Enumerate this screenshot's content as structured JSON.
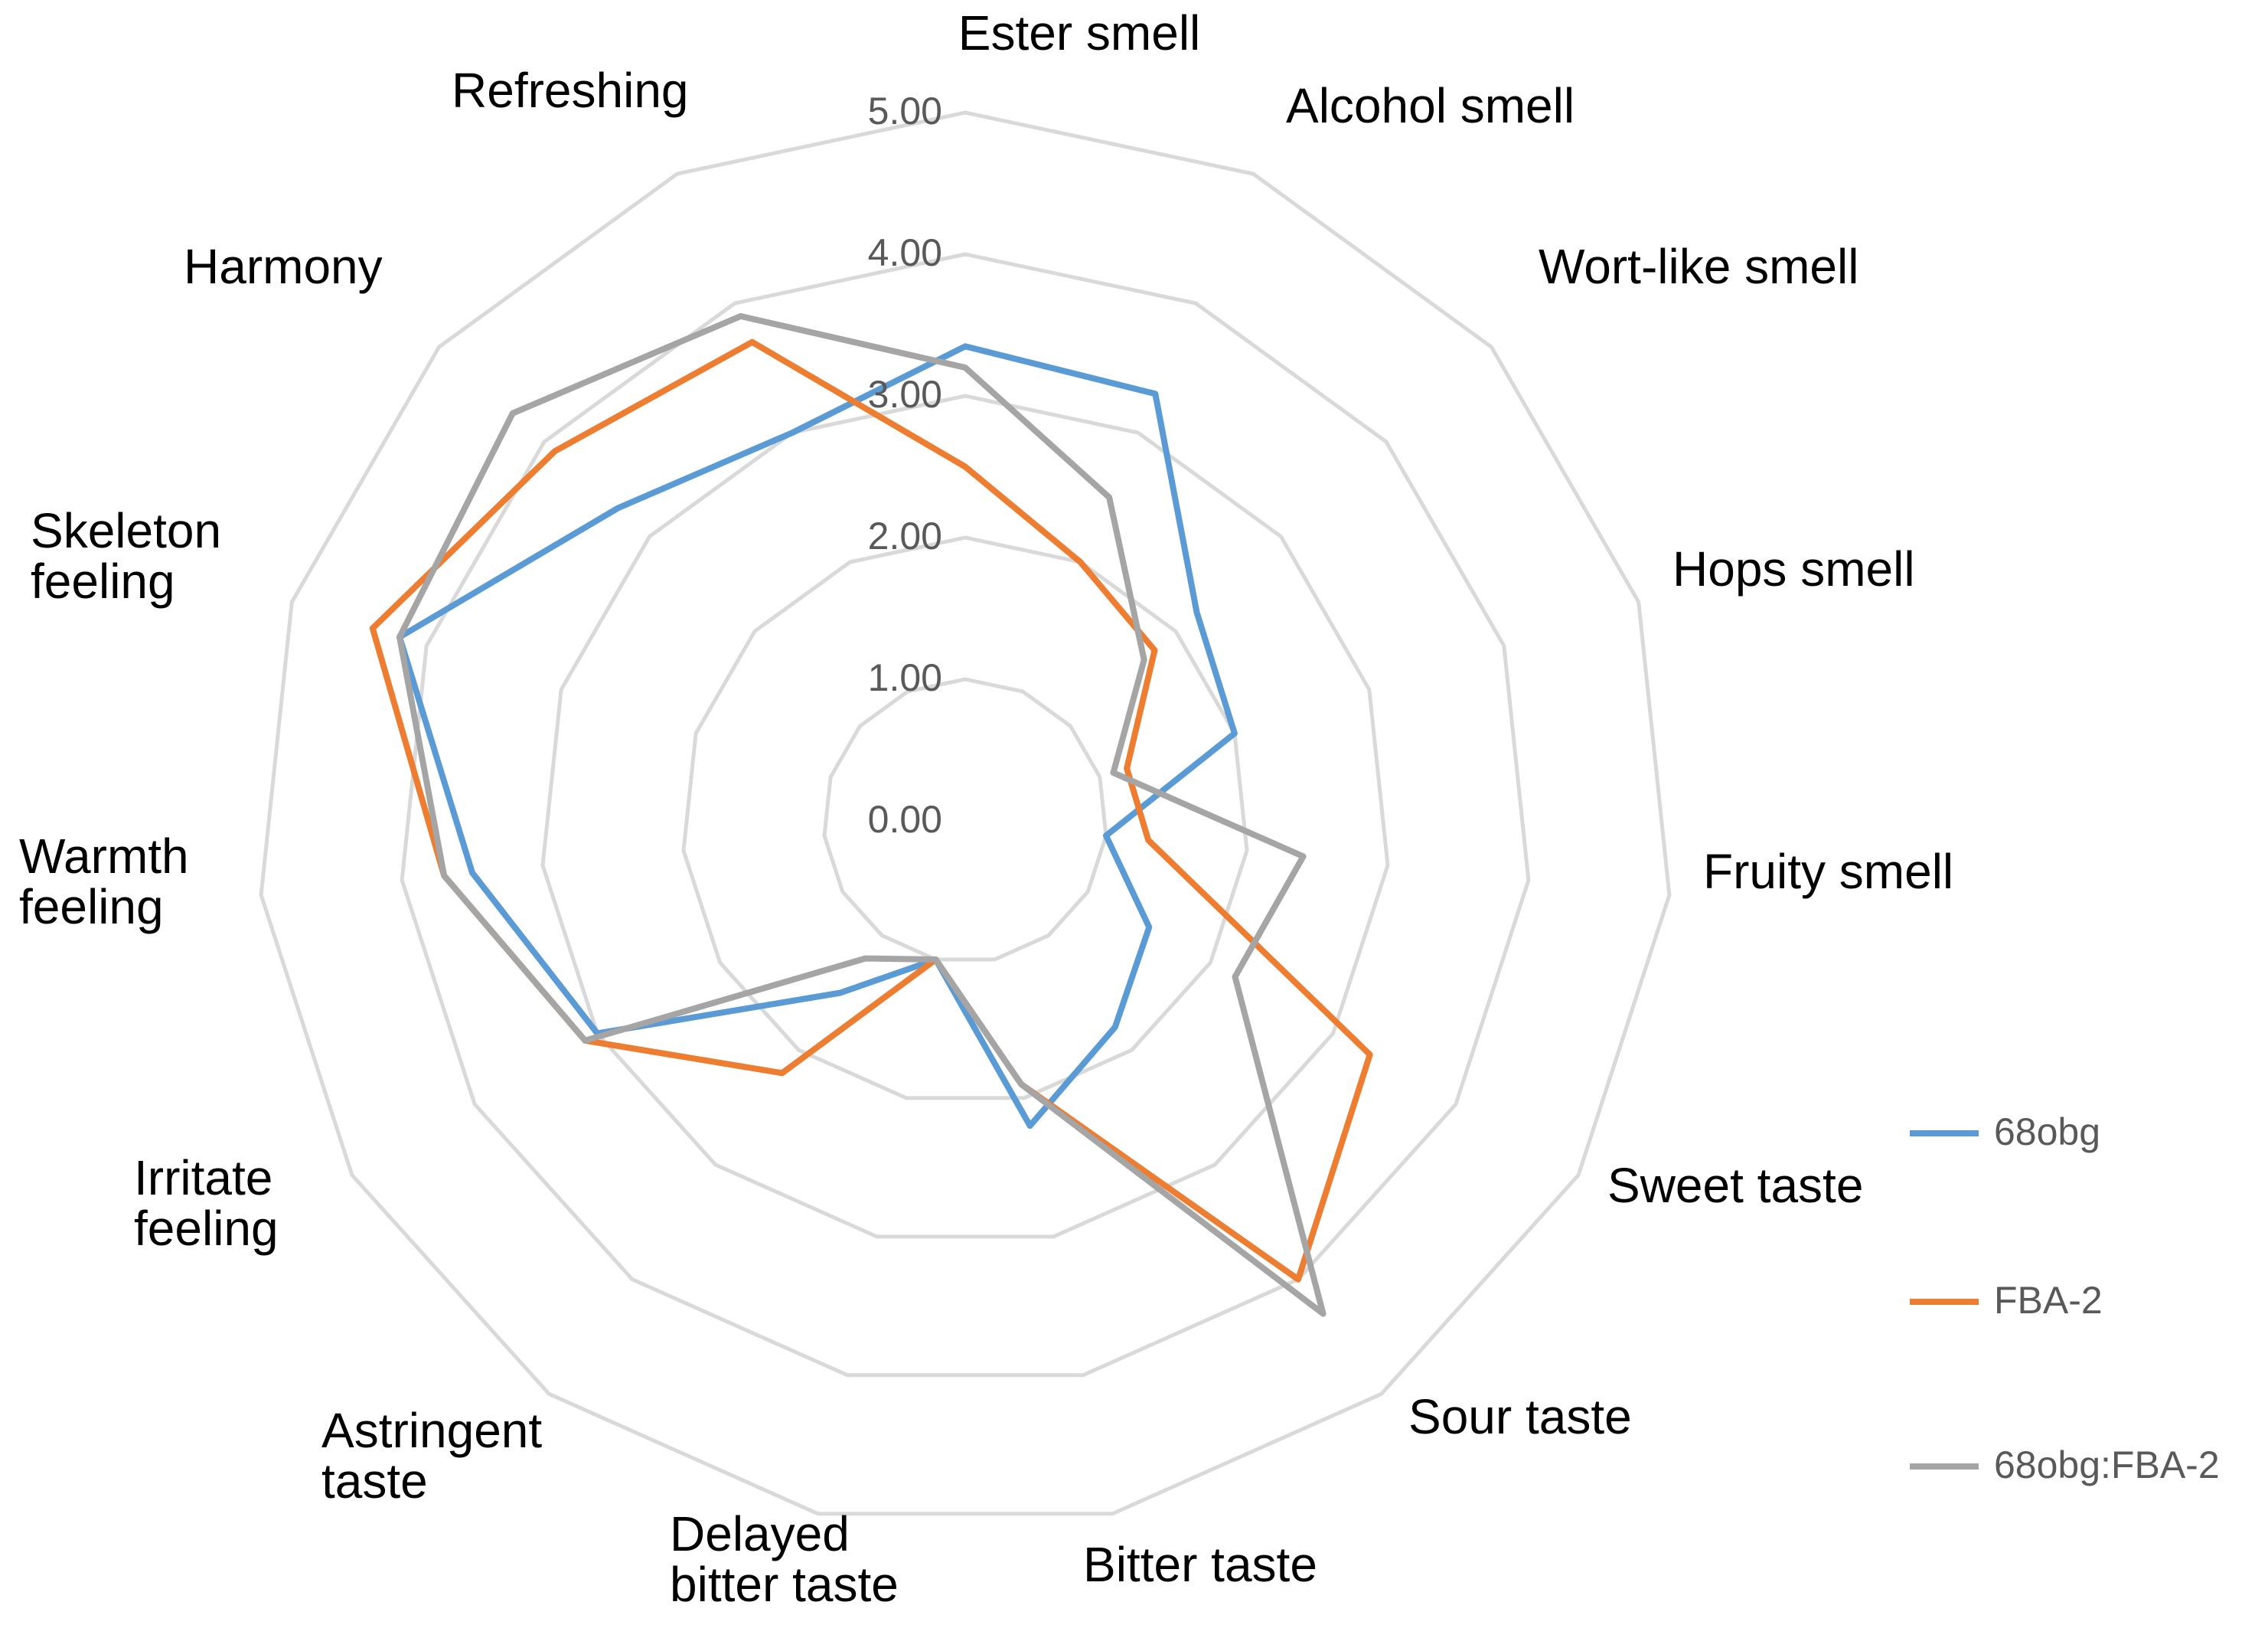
{
  "chart_data": {
    "type": "radar",
    "title": "",
    "axes": [
      "Ester smell",
      "Alcohol smell",
      "Wort-like smell",
      "Hops smell",
      "Fruity smell",
      "Sweet taste",
      "Sour taste",
      "Bitter taste",
      "Delayed bitter taste",
      "Astringent taste",
      "Irritate feeling",
      "Warmth feeling",
      "Skeleton feeling",
      "Harmony",
      "Refreshing"
    ],
    "range": [
      0,
      5
    ],
    "ticks": [
      "0.00",
      "1.00",
      "2.00",
      "3.00",
      "4.00",
      "5.00"
    ],
    "series": [
      {
        "name": "68obg",
        "color": "#5b9bd5",
        "values": [
          3.35,
          3.3,
          2.2,
          2.0,
          1.0,
          1.5,
          1.8,
          2.2,
          1.0,
          1.5,
          3.0,
          3.5,
          4.2,
          3.3,
          3.0
        ]
      },
      {
        "name": "FBA-2",
        "color": "#ed7d31",
        "values": [
          2.5,
          2.0,
          1.8,
          1.2,
          1.3,
          3.3,
          4.0,
          1.9,
          1.0,
          2.2,
          3.1,
          3.7,
          4.4,
          3.9,
          3.7
        ]
      },
      {
        "name": "68obg:FBA-2",
        "color": "#a5a5a5",
        "values": [
          3.2,
          2.5,
          1.7,
          1.1,
          2.4,
          2.2,
          4.3,
          1.9,
          1.0,
          1.2,
          3.1,
          3.7,
          4.2,
          4.3,
          3.9
        ]
      }
    ],
    "legend_position": "bottom-right"
  }
}
